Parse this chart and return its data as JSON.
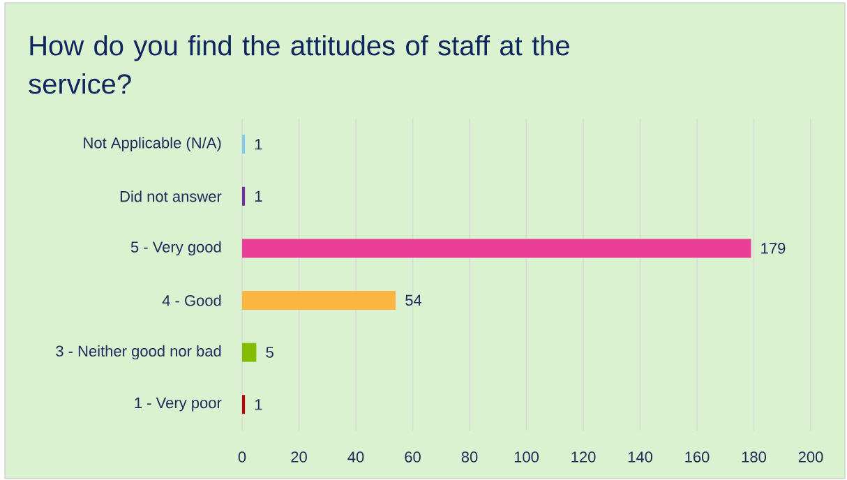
{
  "chart_data": {
    "type": "bar",
    "orientation": "horizontal",
    "title": "How do you find the attitudes of staff at the service?",
    "categories": [
      "Not Applicable (N/A)",
      "Did not answer",
      "5 - Very good",
      "4 - Good",
      "3 - Neither good nor bad",
      "1 - Very poor"
    ],
    "values": [
      1,
      1,
      179,
      54,
      5,
      1
    ],
    "colors": [
      "#83CBEB",
      "#7030A0",
      "#E83E96",
      "#FBB741",
      "#84BC00",
      "#C00000"
    ],
    "xlim": [
      0,
      200
    ],
    "xticks": [
      0,
      20,
      40,
      60,
      80,
      100,
      120,
      140,
      160,
      180,
      200
    ],
    "grid": "x",
    "data_labels": true
  }
}
